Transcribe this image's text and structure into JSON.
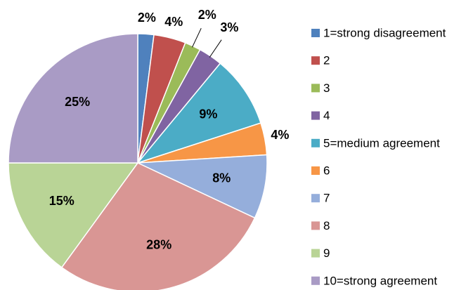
{
  "chart_data": {
    "type": "pie",
    "categories": [
      "1=strong disagreement",
      "2",
      "3",
      "4",
      "5=medium agreement",
      "6",
      "7",
      "8",
      "9",
      "10=strong agreement"
    ],
    "values": [
      2,
      4,
      2,
      3,
      9,
      4,
      8,
      28,
      15,
      25
    ],
    "value_labels": [
      "2%",
      "4%",
      "2%",
      "3%",
      "9%",
      "4%",
      "8%",
      "28%",
      "15%",
      "25%"
    ],
    "colors": [
      "#4f81bd",
      "#c0504d",
      "#9bbb59",
      "#8064a2",
      "#4bacc6",
      "#f79646",
      "#95aedb",
      "#d99694",
      "#b9d496",
      "#a99bc5"
    ],
    "legend": "right"
  }
}
